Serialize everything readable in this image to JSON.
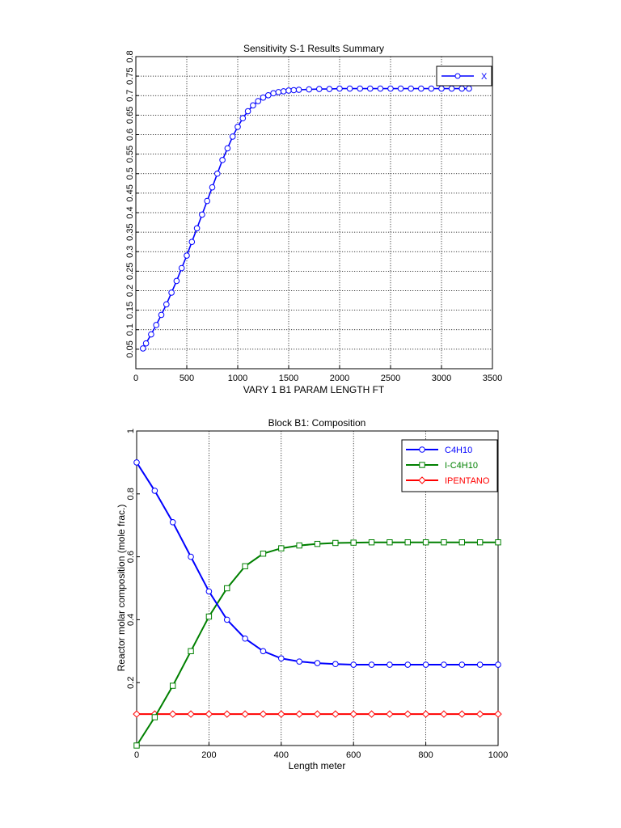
{
  "chart_data": [
    {
      "type": "line",
      "title": "Sensitivity S-1 Results Summary",
      "xlabel": "VARY 1 B1 PARAM LENGTH  FT",
      "ylabel": "",
      "xlim": [
        0,
        3500
      ],
      "ylim": [
        0,
        0.8
      ],
      "xticks": [
        "0",
        "500",
        "1000",
        "1500",
        "2000",
        "2500",
        "3000",
        "3500"
      ],
      "yticks": [
        "0.05",
        "0.1",
        "0.15",
        "0.2",
        "0.25",
        "0.3",
        "0.35",
        "0.4",
        "0.45",
        "0.5",
        "0.55",
        "0.6",
        "0.65",
        "0.7",
        "0.75",
        "0.8"
      ],
      "grid": true,
      "legend_position": "top-right",
      "series": [
        {
          "name": "X",
          "color": "#0000ff",
          "marker": "circle",
          "x": [
            70,
            100,
            150,
            200,
            250,
            300,
            350,
            400,
            450,
            500,
            550,
            600,
            650,
            700,
            750,
            800,
            850,
            900,
            950,
            1000,
            1050,
            1100,
            1150,
            1200,
            1250,
            1300,
            1350,
            1400,
            1450,
            1500,
            1550,
            1600,
            1700,
            1800,
            1900,
            2000,
            2100,
            2200,
            2300,
            2400,
            2500,
            2600,
            2700,
            2800,
            2900,
            3000,
            3100,
            3200,
            3270
          ],
          "values": [
            0.052,
            0.065,
            0.088,
            0.112,
            0.138,
            0.165,
            0.195,
            0.225,
            0.258,
            0.29,
            0.325,
            0.36,
            0.395,
            0.43,
            0.465,
            0.5,
            0.535,
            0.565,
            0.595,
            0.62,
            0.642,
            0.66,
            0.675,
            0.686,
            0.695,
            0.701,
            0.706,
            0.709,
            0.711,
            0.713,
            0.714,
            0.715,
            0.716,
            0.717,
            0.717,
            0.718,
            0.718,
            0.718,
            0.718,
            0.718,
            0.718,
            0.718,
            0.718,
            0.718,
            0.718,
            0.718,
            0.718,
            0.718,
            0.718
          ]
        }
      ]
    },
    {
      "type": "line",
      "title": "Block B1: Composition",
      "xlabel": "Length meter",
      "ylabel": "Reactor molar composition (mole frac.)",
      "xlim": [
        0,
        1000
      ],
      "ylim": [
        0,
        1
      ],
      "xticks": [
        "0",
        "200",
        "400",
        "600",
        "800",
        "1000"
      ],
      "yticks": [
        "0.2",
        "0.4",
        "0.6",
        "0.8",
        "1"
      ],
      "grid": "x-only",
      "legend_position": "top-right",
      "x": [
        0,
        50,
        100,
        150,
        200,
        250,
        300,
        350,
        400,
        450,
        500,
        550,
        600,
        650,
        700,
        750,
        800,
        850,
        900,
        950,
        1000
      ],
      "series": [
        {
          "name": "C4H10",
          "color": "#0000ff",
          "marker": "circle",
          "values": [
            0.9,
            0.81,
            0.71,
            0.6,
            0.49,
            0.4,
            0.34,
            0.3,
            0.277,
            0.267,
            0.262,
            0.259,
            0.257,
            0.257,
            0.257,
            0.257,
            0.257,
            0.257,
            0.257,
            0.257,
            0.257
          ]
        },
        {
          "name": "I-C4H10",
          "color": "#008000",
          "marker": "square",
          "values": [
            0.0,
            0.09,
            0.19,
            0.3,
            0.41,
            0.5,
            0.57,
            0.61,
            0.627,
            0.636,
            0.641,
            0.644,
            0.645,
            0.646,
            0.646,
            0.646,
            0.646,
            0.646,
            0.646,
            0.646,
            0.646
          ]
        },
        {
          "name": "IPENTANO",
          "color": "#ff0000",
          "marker": "diamond",
          "values": [
            0.1,
            0.1,
            0.1,
            0.1,
            0.1,
            0.1,
            0.1,
            0.1,
            0.1,
            0.1,
            0.1,
            0.1,
            0.1,
            0.1,
            0.1,
            0.1,
            0.1,
            0.1,
            0.1,
            0.1,
            0.1
          ]
        }
      ]
    }
  ]
}
